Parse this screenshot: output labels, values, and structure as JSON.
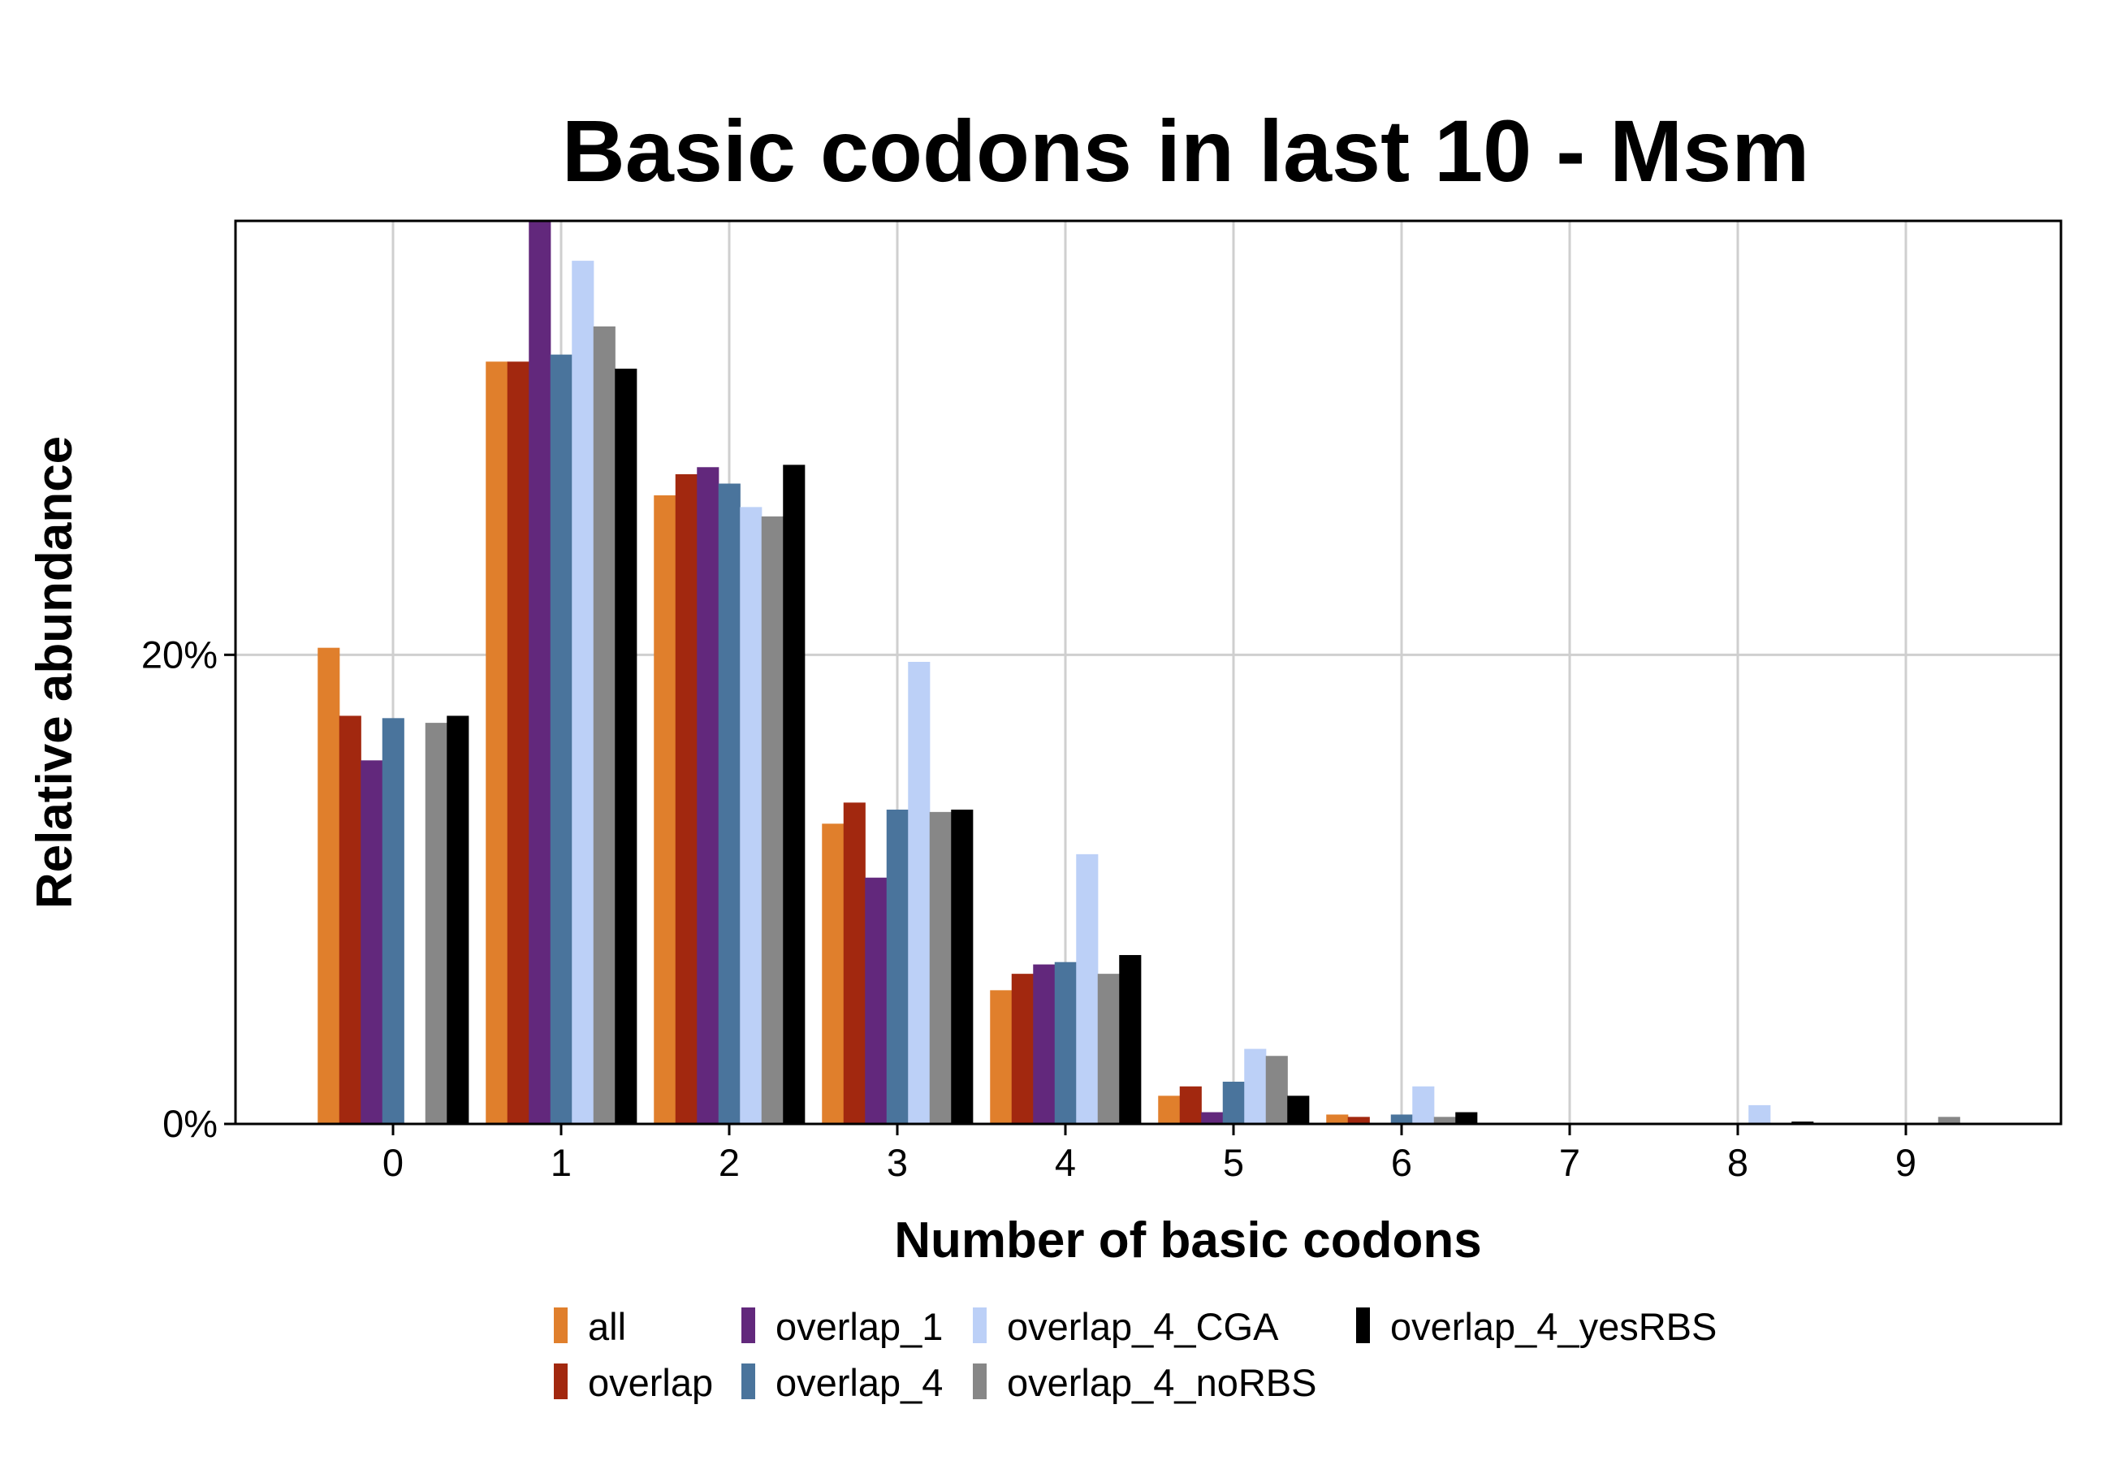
{
  "chart_data": {
    "type": "bar",
    "title": "Basic codons in last 10 - Msm",
    "xlabel": "Number of basic codons",
    "ylabel": "Relative abundance",
    "categories": [
      "0",
      "1",
      "2",
      "3",
      "4",
      "5",
      "6",
      "7",
      "8",
      "9"
    ],
    "y_ticks": [
      {
        "value": 0,
        "label": "0%"
      },
      {
        "value": 20,
        "label": "20%"
      }
    ],
    "ylim": [
      0,
      38.5
    ],
    "grid": true,
    "legend_position": "bottom",
    "series": [
      {
        "name": "all",
        "color": "#E07F2C",
        "values": [
          20.3,
          32.5,
          26.8,
          12.8,
          5.7,
          1.2,
          0.4,
          0,
          0,
          0
        ]
      },
      {
        "name": "overlap",
        "color": "#A2280F",
        "values": [
          17.4,
          32.5,
          27.7,
          13.7,
          6.4,
          1.6,
          0.3,
          0,
          0,
          0
        ]
      },
      {
        "name": "overlap_1",
        "color": "#62287C",
        "values": [
          15.5,
          38.5,
          28.0,
          10.5,
          6.8,
          0.5,
          0,
          0,
          0,
          0
        ]
      },
      {
        "name": "overlap_4",
        "color": "#4A749C",
        "values": [
          17.3,
          32.8,
          27.3,
          13.4,
          6.9,
          1.8,
          0.4,
          0,
          0,
          0
        ]
      },
      {
        "name": "overlap_4_CGA",
        "color": "#BCD0F7",
        "values": [
          0,
          36.8,
          26.3,
          19.7,
          11.5,
          3.2,
          1.6,
          0,
          0.8,
          0
        ]
      },
      {
        "name": "overlap_4_noRBS",
        "color": "#878787",
        "values": [
          17.1,
          34.0,
          25.9,
          13.3,
          6.4,
          2.9,
          0.3,
          0,
          0,
          0.3
        ]
      },
      {
        "name": "overlap_4_yesRBS",
        "color": "#000000",
        "values": [
          17.4,
          32.2,
          28.1,
          13.4,
          7.2,
          1.2,
          0.5,
          0,
          0.1,
          0
        ]
      }
    ]
  }
}
